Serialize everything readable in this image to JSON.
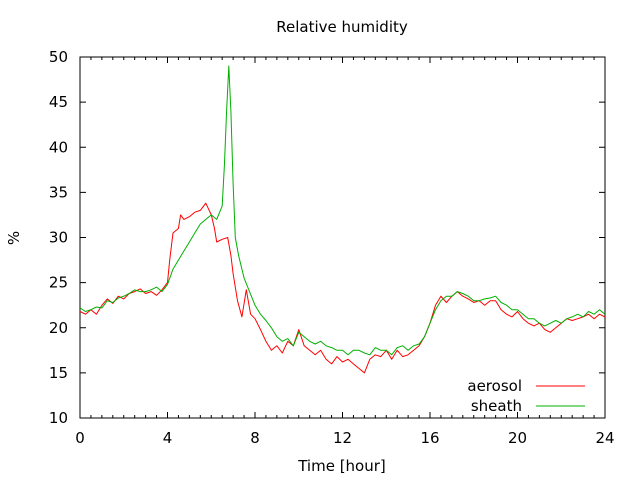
{
  "chart_data": {
    "type": "line",
    "title": "Relative humidity",
    "xlabel": "Time [hour]",
    "ylabel": "%",
    "xlim": [
      0,
      24
    ],
    "ylim": [
      10,
      50
    ],
    "xticks": [
      0,
      4,
      8,
      12,
      16,
      20,
      24
    ],
    "yticks": [
      10,
      15,
      20,
      25,
      30,
      35,
      40,
      45,
      50
    ],
    "grid": false,
    "legend_position": "bottom-right",
    "series": [
      {
        "name": "aerosol",
        "color": "#ff0000",
        "x": [
          0,
          0.25,
          0.5,
          0.75,
          1,
          1.25,
          1.5,
          1.75,
          2,
          2.25,
          2.5,
          2.75,
          3,
          3.25,
          3.5,
          3.75,
          4,
          4.1,
          4.25,
          4.5,
          4.6,
          4.75,
          5,
          5.25,
          5.5,
          5.75,
          6,
          6.15,
          6.25,
          6.5,
          6.75,
          6.9,
          7,
          7.2,
          7.4,
          7.6,
          7.8,
          8,
          8.25,
          8.5,
          8.75,
          9,
          9.25,
          9.5,
          9.75,
          10,
          10.25,
          10.5,
          10.75,
          11,
          11.25,
          11.5,
          11.75,
          12,
          12.25,
          12.5,
          12.75,
          13,
          13.25,
          13.5,
          13.75,
          14,
          14.25,
          14.5,
          14.75,
          15,
          15.25,
          15.5,
          15.75,
          16,
          16.25,
          16.5,
          16.75,
          17,
          17.25,
          17.5,
          17.75,
          18,
          18.25,
          18.5,
          18.75,
          19,
          19.25,
          19.5,
          19.75,
          20,
          20.25,
          20.5,
          20.75,
          21,
          21.25,
          21.5,
          21.75,
          22,
          22.25,
          22.5,
          22.75,
          23,
          23.25,
          23.5,
          23.75,
          24
        ],
        "y": [
          21.8,
          21.5,
          22.0,
          21.5,
          22.5,
          23.2,
          22.7,
          23.5,
          23.2,
          23.8,
          24.0,
          24.3,
          23.8,
          24.0,
          23.6,
          24.2,
          25.0,
          27.5,
          30.5,
          31.0,
          32.5,
          32.0,
          32.3,
          32.8,
          33.0,
          33.8,
          32.5,
          31.0,
          29.5,
          29.8,
          30.0,
          28.0,
          26.0,
          23.0,
          21.2,
          24.2,
          21.5,
          21.0,
          19.8,
          18.5,
          17.5,
          18.0,
          17.2,
          18.5,
          18.0,
          19.8,
          18.0,
          17.5,
          17.0,
          17.5,
          16.5,
          16.0,
          16.8,
          16.2,
          16.5,
          16.0,
          15.5,
          15.0,
          16.5,
          17.0,
          16.8,
          17.5,
          16.5,
          17.5,
          16.8,
          17.0,
          17.5,
          18.0,
          19.0,
          20.5,
          22.5,
          23.5,
          22.8,
          23.5,
          24.0,
          23.5,
          23.2,
          22.8,
          23.0,
          22.5,
          23.0,
          23.0,
          22.0,
          21.5,
          21.2,
          21.8,
          21.0,
          20.5,
          20.2,
          20.5,
          19.8,
          19.5,
          20.0,
          20.5,
          21.0,
          20.8,
          21.0,
          21.2,
          21.5,
          21.0,
          21.5,
          21.2
        ]
      },
      {
        "name": "sheath",
        "color": "#00b000",
        "x": [
          0,
          0.25,
          0.5,
          0.75,
          1,
          1.25,
          1.5,
          1.75,
          2,
          2.25,
          2.5,
          2.75,
          3,
          3.25,
          3.5,
          3.75,
          4,
          4.25,
          4.5,
          4.75,
          5,
          5.25,
          5.5,
          5.75,
          6,
          6.25,
          6.5,
          6.6,
          6.7,
          6.8,
          6.9,
          7,
          7.1,
          7.25,
          7.5,
          7.75,
          8,
          8.25,
          8.5,
          8.75,
          9,
          9.25,
          9.5,
          9.75,
          10,
          10.25,
          10.5,
          10.75,
          11,
          11.25,
          11.5,
          11.75,
          12,
          12.25,
          12.5,
          12.75,
          13,
          13.25,
          13.5,
          13.75,
          14,
          14.25,
          14.5,
          14.75,
          15,
          15.25,
          15.5,
          15.75,
          16,
          16.25,
          16.5,
          16.75,
          17,
          17.25,
          17.5,
          17.75,
          18,
          18.25,
          18.5,
          18.75,
          19,
          19.25,
          19.5,
          19.75,
          20,
          20.25,
          20.5,
          20.75,
          21,
          21.25,
          21.5,
          21.75,
          22,
          22.25,
          22.5,
          22.75,
          23,
          23.25,
          23.5,
          23.75,
          24
        ],
        "y": [
          22.2,
          21.8,
          22.0,
          22.3,
          22.2,
          23.0,
          22.8,
          23.3,
          23.5,
          23.8,
          24.2,
          24.0,
          24.0,
          24.2,
          24.5,
          24.0,
          24.8,
          26.5,
          27.5,
          28.5,
          29.5,
          30.5,
          31.5,
          32.0,
          32.5,
          32.0,
          33.5,
          38.0,
          44.0,
          49.0,
          44.0,
          36.0,
          30.0,
          28.0,
          25.5,
          24.0,
          22.5,
          21.5,
          20.8,
          20.0,
          19.0,
          18.5,
          18.8,
          18.0,
          19.5,
          19.0,
          18.5,
          18.2,
          18.5,
          18.0,
          17.8,
          17.5,
          17.5,
          17.0,
          17.5,
          17.5,
          17.2,
          17.0,
          17.8,
          17.5,
          17.5,
          17.0,
          17.8,
          18.0,
          17.5,
          18.0,
          18.2,
          19.0,
          20.5,
          22.0,
          23.0,
          23.5,
          23.5,
          24.0,
          23.8,
          23.5,
          23.0,
          23.0,
          23.2,
          23.3,
          23.5,
          22.8,
          22.5,
          22.0,
          22.0,
          21.5,
          21.0,
          21.0,
          20.5,
          20.2,
          20.5,
          20.8,
          20.5,
          21.0,
          21.2,
          21.5,
          21.2,
          21.8,
          21.5,
          22.0,
          21.5
        ]
      }
    ]
  }
}
